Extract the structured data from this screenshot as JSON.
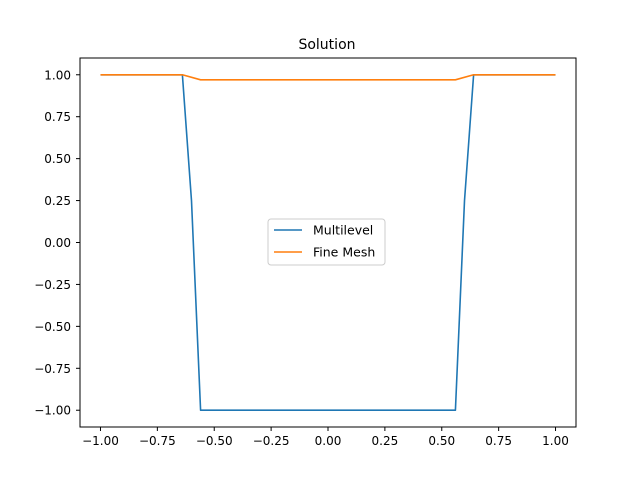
{
  "chart_data": {
    "type": "line",
    "title": "Solution",
    "xlabel": "",
    "ylabel": "",
    "xlim": [
      -1.09,
      1.09
    ],
    "ylim": [
      -1.1,
      1.1
    ],
    "xticks": [
      -1.0,
      -0.75,
      -0.5,
      -0.25,
      0.0,
      0.25,
      0.5,
      0.75,
      1.0
    ],
    "xtick_labels": [
      "−1.00",
      "−0.75",
      "−0.50",
      "−0.25",
      "0.00",
      "0.25",
      "0.50",
      "0.75",
      "1.00"
    ],
    "yticks": [
      1.0,
      0.75,
      0.5,
      0.25,
      0.0,
      -0.25,
      -0.5,
      -0.75,
      -1.0
    ],
    "ytick_labels": [
      "1.00",
      "0.75",
      "0.50",
      "0.25",
      "0.00",
      "−0.25",
      "−0.50",
      "−0.75",
      "−1.00"
    ],
    "grid": false,
    "legend_position": "center",
    "series": [
      {
        "name": "Multilevel",
        "color": "#1f77b4",
        "x": [
          -1.0,
          -0.64,
          -0.6,
          -0.56,
          0.56,
          0.6,
          0.64,
          1.0
        ],
        "y": [
          1.0,
          1.0,
          0.25,
          -1.0,
          -1.0,
          0.25,
          1.0,
          1.0
        ]
      },
      {
        "name": "Fine Mesh",
        "color": "#ff7f0e",
        "x": [
          -1.0,
          -0.64,
          -0.56,
          0.56,
          0.64,
          1.0
        ],
        "y": [
          1.0,
          1.0,
          0.97,
          0.97,
          1.0,
          1.0
        ]
      }
    ]
  }
}
